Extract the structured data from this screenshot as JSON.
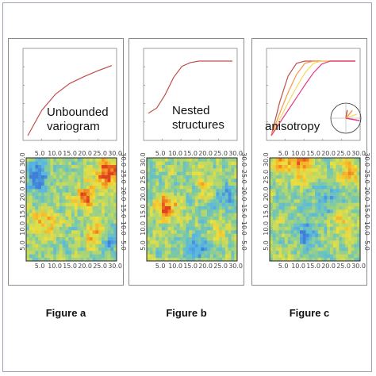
{
  "chart_data": [
    {
      "panel": "a",
      "type": "line",
      "label": "Figure a",
      "annotation_lines": [
        "Unbounded",
        "variogram"
      ],
      "variogram": {
        "model": "power (unbounded)",
        "x": [
          0,
          5,
          10,
          15,
          20,
          25,
          30
        ],
        "y": [
          0,
          0.34,
          0.56,
          0.7,
          0.79,
          0.87,
          0.94
        ]
      },
      "map": {
        "type": "heatmap",
        "x_ticks": [
          "5.0",
          "10.0",
          "15.0",
          "20.0",
          "25.0",
          "30.0"
        ],
        "y_ticks": [
          "5.0",
          "10.0",
          "15.0",
          "20.0",
          "25.0",
          "30.0"
        ],
        "colormap": [
          "#3f7fd8",
          "#57b6e4",
          "#7cc9a6",
          "#b7d86a",
          "#f0df3c",
          "#f5a623",
          "#e04020"
        ],
        "hotspots": [
          [
            28,
            26,
            3.5,
            1.0
          ],
          [
            24,
            8,
            2.5,
            0.9
          ],
          [
            20,
            19,
            2.5,
            0.8
          ],
          [
            7,
            12,
            3,
            0.6
          ],
          [
            4,
            25,
            3,
            -0.7
          ],
          [
            27,
            6,
            2.5,
            -0.6
          ]
        ]
      }
    },
    {
      "panel": "b",
      "type": "line",
      "label": "Figure b",
      "annotation_lines": [
        "Nested",
        "structures"
      ],
      "variogram": {
        "model": "nested (bounded)",
        "x": [
          0,
          3,
          6,
          9,
          12,
          15,
          18,
          21,
          24,
          27,
          30
        ],
        "y": [
          0.3,
          0.37,
          0.55,
          0.78,
          0.93,
          0.98,
          1.0,
          1.0,
          1.0,
          1.0,
          1.0
        ]
      },
      "map": {
        "type": "heatmap",
        "x_ticks": [
          "5.0",
          "10.0",
          "15.0",
          "20.0",
          "25.0",
          "30.0"
        ],
        "y_ticks": [
          "5.0",
          "10.0",
          "15.0",
          "20.0",
          "25.0",
          "30.0"
        ],
        "colormap": [
          "#3f7fd8",
          "#57b6e4",
          "#7cc9a6",
          "#b7d86a",
          "#f0df3c",
          "#f5a623",
          "#e04020"
        ],
        "hotspots": [
          [
            7,
            16,
            2.5,
            1.0
          ],
          [
            21,
            22,
            2.5,
            0.6
          ],
          [
            24,
            8,
            2,
            0.5
          ],
          [
            17,
            4,
            2.5,
            -0.7
          ],
          [
            25,
            20,
            3,
            -0.6
          ]
        ]
      }
    },
    {
      "panel": "c",
      "type": "line",
      "label": "Figure c",
      "annotation_lines": [
        "anisotropy"
      ],
      "variogram": {
        "model": "directional spherical",
        "x": [
          0,
          4,
          8,
          12,
          16,
          20,
          24,
          28,
          32,
          36,
          40
        ],
        "series": [
          {
            "color": "#c0504d",
            "y": [
              0,
              0.45,
              0.8,
              0.97,
              1.0,
              1.0,
              1.0,
              1.0,
              1.0,
              1.0,
              1.0
            ]
          },
          {
            "color": "#f79646",
            "y": [
              0,
              0.3,
              0.58,
              0.82,
              0.97,
              1.0,
              1.0,
              1.0,
              1.0,
              1.0,
              1.0
            ]
          },
          {
            "color": "#f2dc5d",
            "y": [
              0,
              0.22,
              0.44,
              0.65,
              0.84,
              0.97,
              1.0,
              1.0,
              1.0,
              1.0,
              1.0
            ]
          },
          {
            "color": "#e8388a",
            "y": [
              0,
              0.17,
              0.34,
              0.51,
              0.68,
              0.84,
              0.96,
              1.0,
              1.0,
              1.0,
              1.0
            ]
          }
        ]
      },
      "map": {
        "type": "heatmap",
        "x_ticks": [
          "5.0",
          "10.0",
          "15.0",
          "20.0",
          "25.0",
          "30.0"
        ],
        "y_ticks": [
          "5.0",
          "10.0",
          "15.0",
          "20.0",
          "25.0",
          "30.0"
        ],
        "colormap": [
          "#3f7fd8",
          "#57b6e4",
          "#7cc9a6",
          "#b7d86a",
          "#f0df3c",
          "#f5a623",
          "#e04020"
        ],
        "hotspots": [
          [
            11,
            29,
            3,
            0.9
          ],
          [
            4,
            29,
            2.5,
            0.6
          ],
          [
            27,
            27,
            2.5,
            0.7
          ],
          [
            25,
            12,
            3,
            0.4
          ],
          [
            13,
            8,
            3,
            -0.6
          ],
          [
            20,
            18,
            3,
            -0.5
          ]
        ]
      }
    }
  ]
}
